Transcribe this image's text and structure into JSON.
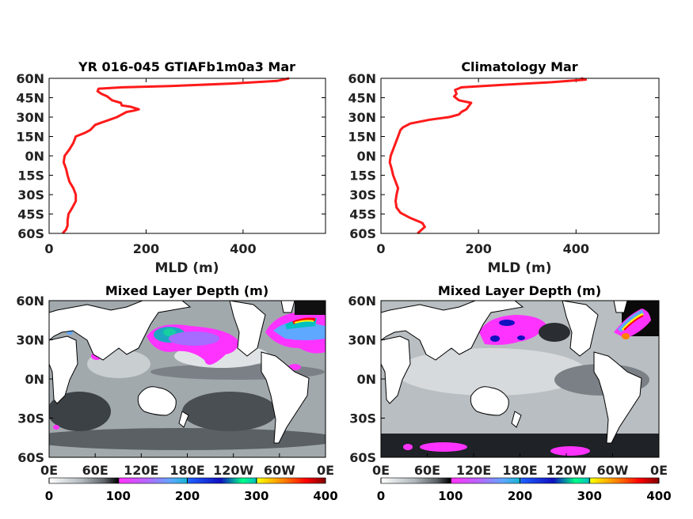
{
  "colors": {
    "profile_line": "#ff1a1a",
    "land": "#ffffff",
    "coastline": "#000000",
    "colormap": [
      "#ffffff",
      "#b0b8bc",
      "#6e7479",
      "#2a2d31",
      "#000000",
      "#ff33ff",
      "#a66bff",
      "#5fa8ff",
      "#15b5d5",
      "#2060ff",
      "#1010c0",
      "#00ff88",
      "#00c0c0",
      "#ffff00",
      "#ff8000",
      "#ff0000",
      "#800000"
    ]
  },
  "chart_data": [
    {
      "type": "line",
      "id": "model_profile",
      "title": "YR 016-045 GTIAFb1m0a3 Mar",
      "xlabel": "MLD (m)",
      "ylabel": "",
      "xlim": [
        0,
        570
      ],
      "ylim": [
        -60,
        60
      ],
      "x_ticks": [
        0,
        200,
        400
      ],
      "x_ticklabels": [
        "0",
        "200",
        "400"
      ],
      "y_ticks": [
        60,
        45,
        30,
        15,
        0,
        -15,
        -30,
        -45,
        -60
      ],
      "y_ticklabels": [
        "60N",
        "45N",
        "30N",
        "15N",
        "0N",
        "15S",
        "30S",
        "45S",
        "60S"
      ],
      "grid": false,
      "series": [
        {
          "color": "#ff1a1a",
          "x": [
            28,
            35,
            38,
            38,
            40,
            48,
            55,
            55,
            50,
            42,
            38,
            35,
            30,
            32,
            42,
            50,
            55,
            75,
            85,
            90,
            95,
            110,
            125,
            140,
            150,
            160,
            175,
            185,
            168,
            150,
            148,
            130,
            120,
            108,
            100,
            102,
            150,
            250,
            380,
            470,
            495
          ],
          "y": [
            -60,
            -57,
            -54,
            -50,
            -45,
            -40,
            -35,
            -30,
            -25,
            -20,
            -15,
            -10,
            -5,
            0,
            5,
            10,
            15,
            18,
            20,
            22,
            24,
            26,
            28,
            30,
            32,
            34,
            35,
            36,
            38,
            39,
            41,
            43,
            46,
            48,
            50,
            52,
            53,
            54,
            56,
            58,
            60
          ]
        }
      ]
    },
    {
      "type": "line",
      "id": "clim_profile",
      "title": "Climatology Mar",
      "xlabel": "MLD (m)",
      "ylabel": "",
      "xlim": [
        0,
        570
      ],
      "ylim": [
        -60,
        60
      ],
      "x_ticks": [
        0,
        200,
        400
      ],
      "x_ticklabels": [
        "0",
        "200",
        "400"
      ],
      "y_ticks": [
        60,
        45,
        30,
        15,
        0,
        -15,
        -30,
        -45,
        -60
      ],
      "y_ticklabels": [
        "60N",
        "45N",
        "30N",
        "15N",
        "0N",
        "15S",
        "30S",
        "45S",
        "60S"
      ],
      "grid": false,
      "series": [
        {
          "color": "#ff1a1a",
          "x": [
            75,
            90,
            85,
            60,
            40,
            32,
            30,
            32,
            35,
            30,
            25,
            22,
            18,
            20,
            25,
            30,
            35,
            38,
            40,
            45,
            60,
            100,
            140,
            160,
            165,
            175,
            185,
            160,
            150,
            155,
            152,
            165,
            250,
            350,
            420,
            410
          ],
          "y": [
            -60,
            -55,
            -52,
            -48,
            -44,
            -40,
            -35,
            -30,
            -25,
            -20,
            -15,
            -10,
            -5,
            0,
            5,
            10,
            15,
            18,
            20,
            22,
            25,
            28,
            30,
            32,
            34,
            36,
            41,
            43,
            46,
            48,
            51,
            53,
            55,
            57,
            59,
            60
          ]
        }
      ]
    },
    {
      "type": "heatmap",
      "id": "model_map",
      "title": "Mixed Layer Depth (m)",
      "x_ticklabels": [
        "0E",
        "60E",
        "120E",
        "180E",
        "120W",
        "60W",
        "0E"
      ],
      "y_ticklabels": [
        "60N",
        "30N",
        "0N",
        "30S",
        "60S"
      ],
      "lon_range": [
        0,
        360
      ],
      "lat_range": [
        -60,
        60
      ],
      "colorbar": {
        "range": [
          0,
          400
        ],
        "ticks": [
          0,
          100,
          200,
          300,
          400
        ],
        "ticklabels": [
          "0",
          "100",
          "200",
          "300",
          "400"
        ]
      }
    },
    {
      "type": "heatmap",
      "id": "clim_map",
      "title": "Mixed Layer Depth (m)",
      "x_ticklabels": [
        "0E",
        "60E",
        "120E",
        "180E",
        "120W",
        "60W",
        "0E"
      ],
      "y_ticklabels": [
        "60N",
        "30N",
        "0N",
        "30S",
        "60S"
      ],
      "lon_range": [
        0,
        360
      ],
      "lat_range": [
        -60,
        60
      ],
      "colorbar": {
        "range": [
          0,
          400
        ],
        "ticks": [
          0,
          100,
          200,
          300,
          400
        ],
        "ticklabels": [
          "0",
          "100",
          "200",
          "300",
          "400"
        ]
      }
    }
  ]
}
